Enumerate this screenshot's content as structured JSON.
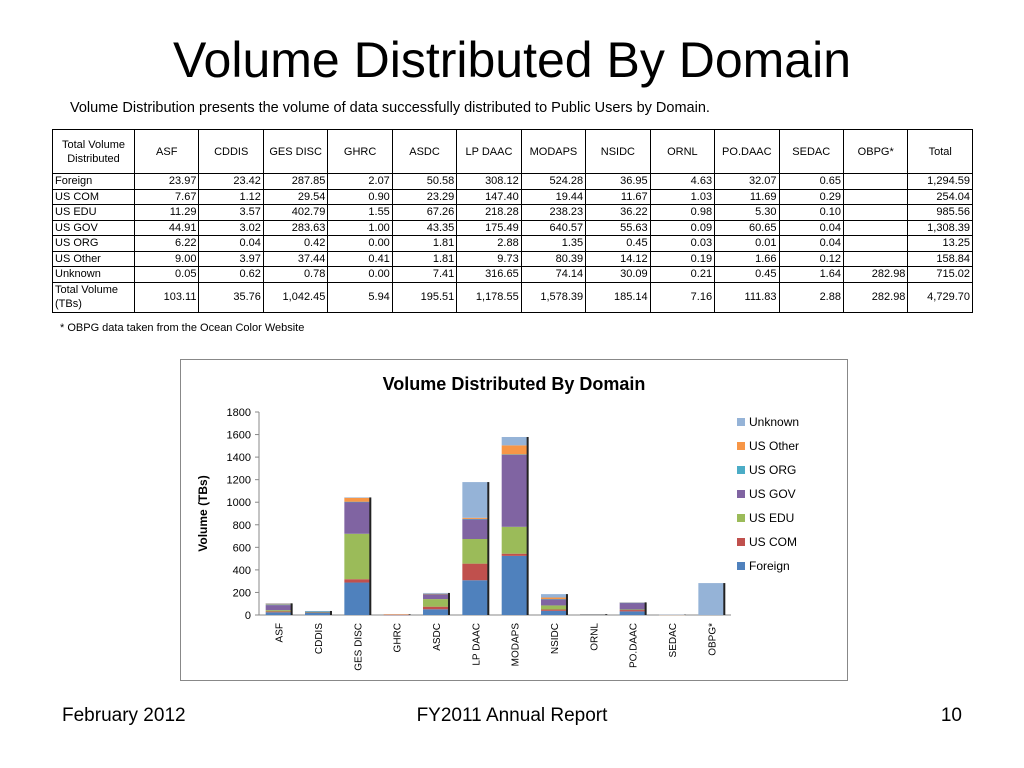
{
  "page": {
    "title": "Volume Distributed By Domain",
    "subtitle": "Volume Distribution presents the volume of data successfully distributed to Public Users by Domain.",
    "footnote": "* OBPG data taken from the Ocean Color Website",
    "footer_left": "February 2012",
    "footer_center": "FY2011 Annual Report",
    "footer_right": "10"
  },
  "table": {
    "corner": "Total Volume Distributed",
    "columns": [
      "ASF",
      "CDDIS",
      "GES DISC",
      "GHRC",
      "ASDC",
      "LP DAAC",
      "MODAPS",
      "NSIDC",
      "ORNL",
      "PO.DAAC",
      "SEDAC",
      "OBPG*",
      "Total"
    ],
    "rows": [
      {
        "label": "Foreign",
        "cells": [
          "23.97",
          "23.42",
          "287.85",
          "2.07",
          "50.58",
          "308.12",
          "524.28",
          "36.95",
          "4.63",
          "32.07",
          "0.65",
          "",
          "1,294.59"
        ]
      },
      {
        "label": "US COM",
        "cells": [
          "7.67",
          "1.12",
          "29.54",
          "0.90",
          "23.29",
          "147.40",
          "19.44",
          "11.67",
          "1.03",
          "11.69",
          "0.29",
          "",
          "254.04"
        ]
      },
      {
        "label": "US EDU",
        "cells": [
          "11.29",
          "3.57",
          "402.79",
          "1.55",
          "67.26",
          "218.28",
          "238.23",
          "36.22",
          "0.98",
          "5.30",
          "0.10",
          "",
          "985.56"
        ]
      },
      {
        "label": "US GOV",
        "cells": [
          "44.91",
          "3.02",
          "283.63",
          "1.00",
          "43.35",
          "175.49",
          "640.57",
          "55.63",
          "0.09",
          "60.65",
          "0.04",
          "",
          "1,308.39"
        ]
      },
      {
        "label": "US ORG",
        "cells": [
          "6.22",
          "0.04",
          "0.42",
          "0.00",
          "1.81",
          "2.88",
          "1.35",
          "0.45",
          "0.03",
          "0.01",
          "0.04",
          "",
          "13.25"
        ]
      },
      {
        "label": "US Other",
        "cells": [
          "9.00",
          "3.97",
          "37.44",
          "0.41",
          "1.81",
          "9.73",
          "80.39",
          "14.12",
          "0.19",
          "1.66",
          "0.12",
          "",
          "158.84"
        ]
      },
      {
        "label": "Unknown",
        "cells": [
          "0.05",
          "0.62",
          "0.78",
          "0.00",
          "7.41",
          "316.65",
          "74.14",
          "30.09",
          "0.21",
          "0.45",
          "1.64",
          "282.98",
          "715.02"
        ]
      }
    ],
    "total_row": {
      "label": "Total Volume (TBs)",
      "cells": [
        "103.11",
        "35.76",
        "1,042.45",
        "5.94",
        "195.51",
        "1,178.55",
        "1,578.39",
        "185.14",
        "7.16",
        "111.83",
        "2.88",
        "282.98",
        "4,729.70"
      ]
    }
  },
  "chart_data": {
    "type": "bar",
    "stacked": true,
    "title": "Volume Distributed By Domain",
    "xlabel": "",
    "ylabel": "Volume (TBs)",
    "ylim": [
      0,
      1800
    ],
    "yticks": [
      0,
      200,
      400,
      600,
      800,
      1000,
      1200,
      1400,
      1600,
      1800
    ],
    "grid": false,
    "legend_position": "right",
    "categories": [
      "ASF",
      "CDDIS",
      "GES DISC",
      "GHRC",
      "ASDC",
      "LP DAAC",
      "MODAPS",
      "NSIDC",
      "ORNL",
      "PO.DAAC",
      "SEDAC",
      "OBPG*"
    ],
    "series": [
      {
        "name": "Foreign",
        "color": "#4f81bd",
        "values": [
          23.97,
          23.42,
          287.85,
          2.07,
          50.58,
          308.12,
          524.28,
          36.95,
          4.63,
          32.07,
          0.65,
          0
        ]
      },
      {
        "name": "US COM",
        "color": "#c0504d",
        "values": [
          7.67,
          1.12,
          29.54,
          0.9,
          23.29,
          147.4,
          19.44,
          11.67,
          1.03,
          11.69,
          0.29,
          0
        ]
      },
      {
        "name": "US EDU",
        "color": "#9bbb59",
        "values": [
          11.29,
          3.57,
          402.79,
          1.55,
          67.26,
          218.28,
          238.23,
          36.22,
          0.98,
          5.3,
          0.1,
          0
        ]
      },
      {
        "name": "US GOV",
        "color": "#8064a2",
        "values": [
          44.91,
          3.02,
          283.63,
          1.0,
          43.35,
          175.49,
          640.57,
          55.63,
          0.09,
          60.65,
          0.04,
          0
        ]
      },
      {
        "name": "US ORG",
        "color": "#4bacc6",
        "values": [
          6.22,
          0.04,
          0.42,
          0.0,
          1.81,
          2.88,
          1.35,
          0.45,
          0.03,
          0.01,
          0.04,
          0
        ]
      },
      {
        "name": "US Other",
        "color": "#f79646",
        "values": [
          9.0,
          3.97,
          37.44,
          0.41,
          1.81,
          9.73,
          80.39,
          14.12,
          0.19,
          1.66,
          0.12,
          0
        ]
      },
      {
        "name": "Unknown",
        "color": "#95b3d7",
        "values": [
          0.05,
          0.62,
          0.78,
          0.0,
          7.41,
          316.65,
          74.14,
          30.09,
          0.21,
          0.45,
          1.64,
          282.98
        ]
      }
    ]
  }
}
